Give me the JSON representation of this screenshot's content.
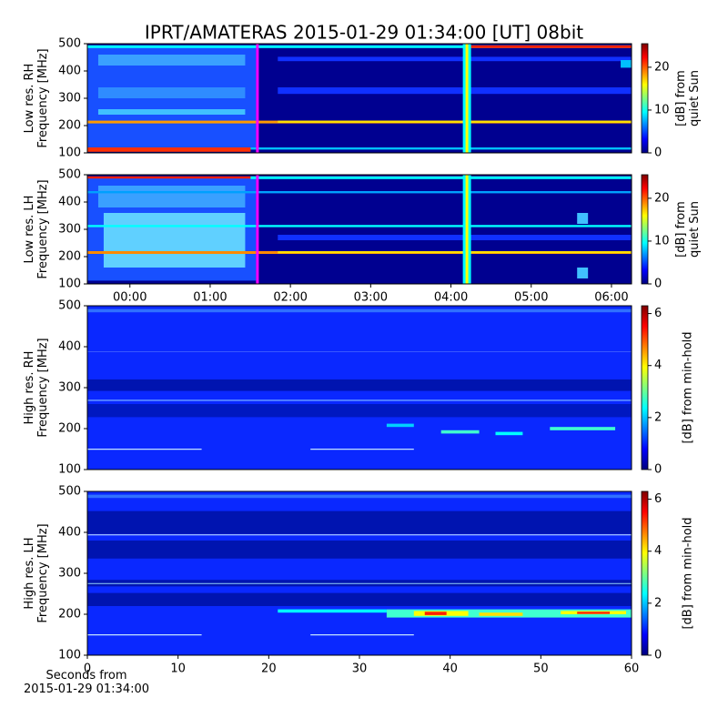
{
  "chart_data": [
    {
      "type": "heatmap",
      "title": "IPRT/AMATERAS 2015-01-29 01:34:00 [UT]   08bit",
      "ylabel": "Low res. RH\nFrequency [MHz]",
      "ylim": [
        100,
        500
      ],
      "yticks": [
        100,
        200,
        300,
        400,
        500
      ],
      "xlim": [
        -0.53,
        6.25
      ],
      "colorbar": {
        "label": "[dB] from\nquiet Sun",
        "lim": [
          0,
          25.5
        ],
        "ticks": [
          0,
          10,
          20
        ]
      }
    },
    {
      "type": "heatmap",
      "ylabel": "Low res. LH\nFrequency [MHz]",
      "ylim": [
        100,
        500
      ],
      "yticks": [
        100,
        200,
        300,
        400,
        500
      ],
      "xlim": [
        -0.53,
        6.25
      ],
      "xticks": [
        {
          "value": 0,
          "label": "00:00"
        },
        {
          "value": 1,
          "label": "01:00"
        },
        {
          "value": 2,
          "label": "02:00"
        },
        {
          "value": 3,
          "label": "03:00"
        },
        {
          "value": 4,
          "label": "04:00"
        },
        {
          "value": 5,
          "label": "05:00"
        },
        {
          "value": 6,
          "label": "06:00"
        }
      ],
      "colorbar": {
        "label": "[dB] from\nquiet Sun",
        "lim": [
          0,
          25.5
        ],
        "ticks": [
          0,
          10,
          20
        ]
      }
    },
    {
      "type": "heatmap",
      "ylabel": "High res. RH\nFrequency [MHz]",
      "ylim": [
        100,
        500
      ],
      "yticks": [
        100,
        200,
        300,
        400,
        500
      ],
      "xlim": [
        0,
        60
      ],
      "colorbar": {
        "label": "[dB] from min-hold",
        "lim": [
          0,
          6.3
        ],
        "ticks": [
          0,
          2,
          4,
          6
        ]
      }
    },
    {
      "type": "heatmap",
      "ylabel": "High res. LH\nFrequency [MHz]",
      "ylim": [
        100,
        500
      ],
      "yticks": [
        100,
        200,
        300,
        400,
        500
      ],
      "xlim": [
        0,
        60
      ],
      "xticks": [
        0,
        10,
        20,
        30,
        40,
        50,
        60
      ],
      "xlabel": "Seconds from\n2015-01-29 01:34:00",
      "colorbar": {
        "label": "[dB] from min-hold",
        "lim": [
          0,
          6.3
        ],
        "ticks": [
          0,
          2,
          4,
          6
        ]
      }
    }
  ]
}
